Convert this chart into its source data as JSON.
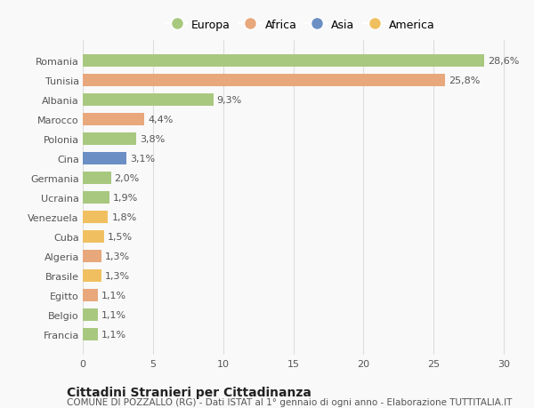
{
  "countries": [
    "Romania",
    "Tunisia",
    "Albania",
    "Marocco",
    "Polonia",
    "Cina",
    "Germania",
    "Ucraina",
    "Venezuela",
    "Cuba",
    "Algeria",
    "Brasile",
    "Egitto",
    "Belgio",
    "Francia"
  ],
  "values": [
    28.6,
    25.8,
    9.3,
    4.4,
    3.8,
    3.1,
    2.0,
    1.9,
    1.8,
    1.5,
    1.3,
    1.3,
    1.1,
    1.1,
    1.1
  ],
  "labels": [
    "28,6%",
    "25,8%",
    "9,3%",
    "4,4%",
    "3,8%",
    "3,1%",
    "2,0%",
    "1,9%",
    "1,8%",
    "1,5%",
    "1,3%",
    "1,3%",
    "1,1%",
    "1,1%",
    "1,1%"
  ],
  "continents": [
    "Europa",
    "Africa",
    "Europa",
    "Africa",
    "Europa",
    "Asia",
    "Europa",
    "Europa",
    "America",
    "America",
    "Africa",
    "America",
    "Africa",
    "Europa",
    "Europa"
  ],
  "colors": {
    "Europa": "#a8c880",
    "Africa": "#e8a87c",
    "Asia": "#6b8fc4",
    "America": "#f0c060"
  },
  "xlim": [
    0,
    31
  ],
  "xticks": [
    0,
    5,
    10,
    15,
    20,
    25,
    30
  ],
  "title": "Cittadini Stranieri per Cittadinanza",
  "subtitle": "COMUNE DI POZZALLO (RG) - Dati ISTAT al 1° gennaio di ogni anno - Elaborazione TUTTITALIA.IT",
  "background_color": "#f9f9f9",
  "bar_height": 0.62,
  "label_fontsize": 8,
  "tick_fontsize": 8,
  "title_fontsize": 10,
  "subtitle_fontsize": 7.5,
  "legend_order": [
    "Europa",
    "Africa",
    "Asia",
    "America"
  ]
}
